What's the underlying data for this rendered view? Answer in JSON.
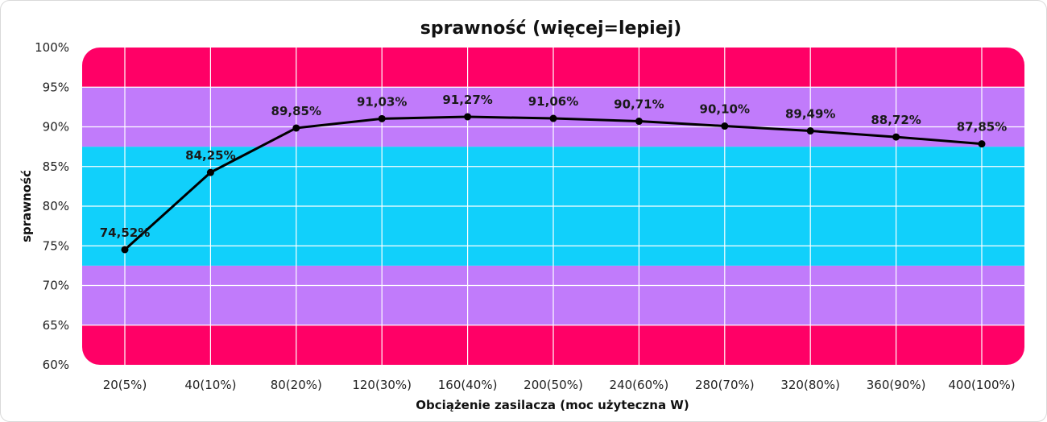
{
  "chart_data": {
    "type": "line",
    "title": "sprawność (więcej=lepiej)",
    "xlabel": "Obciążenie zasilacza (moc użyteczna W)",
    "ylabel": "sprawność",
    "categories": [
      "20(5%)",
      "40(10%)",
      "80(20%)",
      "120(30%)",
      "160(40%)",
      "200(50%)",
      "240(60%)",
      "280(70%)",
      "320(80%)",
      "360(90%)",
      "400(100%)"
    ],
    "series": [
      {
        "values": [
          74.52,
          84.25,
          89.85,
          91.03,
          91.27,
          91.06,
          90.71,
          90.1,
          89.49,
          88.72,
          87.85
        ],
        "labels": [
          "74,52%",
          "84,25%",
          "89,85%",
          "91,03%",
          "91,27%",
          "91,06%",
          "90,71%",
          "90,10%",
          "89,49%",
          "88,72%",
          "87,85%"
        ],
        "color": "#000000"
      }
    ],
    "ylim": [
      60,
      100
    ],
    "yticks": [
      "60%",
      "65%",
      "70%",
      "75%",
      "80%",
      "85%",
      "90%",
      "95%",
      "100%"
    ],
    "grid": true,
    "background_bands": [
      {
        "from": 60,
        "to": 65,
        "color": "#ff0066"
      },
      {
        "from": 65,
        "to": 72.5,
        "color": "#c17bfb"
      },
      {
        "from": 72.5,
        "to": 87.5,
        "color": "#11d0fb"
      },
      {
        "from": 87.5,
        "to": 95,
        "color": "#c17bfb"
      },
      {
        "from": 95,
        "to": 100,
        "color": "#ff0066"
      }
    ]
  }
}
